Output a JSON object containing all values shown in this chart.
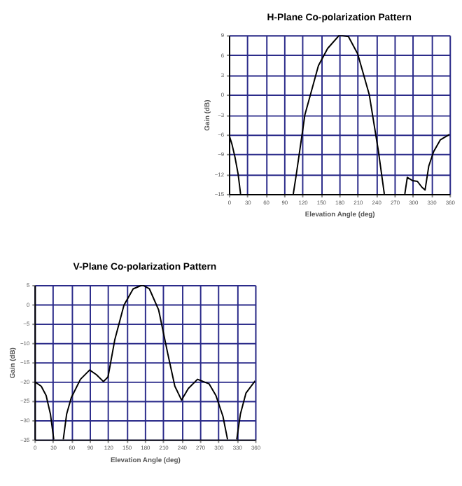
{
  "chart_data": [
    {
      "type": "line",
      "title": "H-Plane Co-polarization Pattern",
      "xlabel": "Elevation Angle (deg)",
      "ylabel": "Gain (dB)",
      "x": [
        0,
        5,
        10,
        15,
        19,
        60,
        105,
        110,
        124,
        146,
        161,
        180,
        195,
        210,
        229,
        244,
        253.5,
        270,
        287,
        291,
        300,
        307.5,
        315,
        320,
        326,
        334,
        345,
        360
      ],
      "series": [
        {
          "color": "#000000",
          "values": [
            -6,
            -7.5,
            -9.5,
            -12,
            -15,
            null,
            -15,
            -12,
            -3,
            4.4,
            7,
            9,
            8.8,
            6.2,
            0,
            -8.6,
            -15,
            null,
            -15,
            -12.5,
            -13,
            -13.1,
            -14,
            -14.4,
            -10.8,
            -8.6,
            -6.8,
            -6
          ]
        }
      ],
      "xlim": [
        0,
        360
      ],
      "ylim": [
        -15,
        9
      ],
      "xticks": [
        0,
        30,
        60,
        90,
        120,
        150,
        180,
        210,
        240,
        270,
        300,
        330,
        360
      ],
      "yticks": [
        -15,
        -12,
        -9,
        -6,
        -3,
        0,
        3,
        6,
        9
      ],
      "grid": true,
      "marker": "none",
      "line_style": "solid"
    },
    {
      "type": "line",
      "title": "V-Plane Co-polarization Pattern",
      "xlabel": "Elevation Angle (deg)",
      "ylabel": "Gain (dB)",
      "x": [
        0,
        11,
        19,
        26,
        30,
        31.5,
        40,
        47,
        52.5,
        60,
        75,
        90,
        101,
        112.5,
        120,
        131,
        146,
        161,
        176,
        187.5,
        202.5,
        217.5,
        229,
        240,
        251,
        266,
        285,
        296,
        307.5,
        315,
        322,
        330,
        336,
        345,
        360
      ],
      "series": [
        {
          "color": "#000000",
          "values": [
            -20,
            -21.2,
            -23.6,
            -28.4,
            -33.2,
            -35,
            null,
            -35,
            -28.4,
            -24.2,
            -19.4,
            -17,
            -18.2,
            -20,
            -18.8,
            -9.2,
            -0.2,
            4,
            5,
            4,
            -1.4,
            -12.8,
            -21.2,
            -24.8,
            -21.8,
            -19.4,
            -20.6,
            -23.6,
            -29,
            -35,
            null,
            -35,
            -28.4,
            -23,
            -19.8
          ]
        }
      ],
      "xlim": [
        0,
        360
      ],
      "ylim": [
        -35,
        5
      ],
      "xticks": [
        0,
        30,
        60,
        90,
        120,
        150,
        180,
        210,
        240,
        270,
        300,
        330,
        360
      ],
      "yticks": [
        -35,
        -30,
        -25,
        -20,
        -15,
        -10,
        -5,
        0,
        5
      ],
      "grid": true,
      "marker": "none",
      "line_style": "solid"
    }
  ]
}
